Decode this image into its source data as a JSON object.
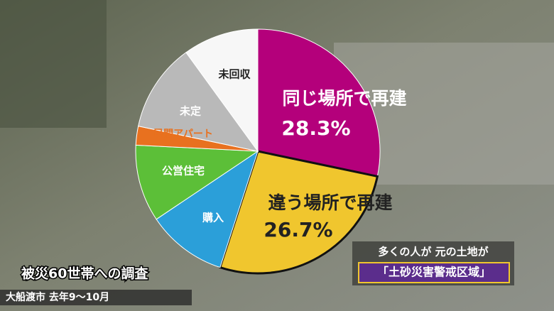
{
  "chart_data": {
    "type": "pie",
    "title": "被災60世帯への調査",
    "subtitle": "大船渡市 去年9～10月",
    "annotations": [
      "多くの人が 元の土地が",
      "「土砂災害警戒区域」"
    ],
    "categories": [
      "同じ場所で再建",
      "違う場所で再建",
      "購入",
      "公営住宅",
      "民間アパート",
      "未定",
      "未回収"
    ],
    "values": [
      28.3,
      26.7,
      10.6,
      10.2,
      2.5,
      11.7,
      10.0
    ],
    "value_labels": [
      "28.3%",
      "26.7%",
      null,
      null,
      null,
      null,
      null
    ],
    "colors": [
      "#b4007b",
      "#f0c62e",
      "#2b9fd9",
      "#5cbf38",
      "#e8711f",
      "#b9b9b9",
      "#f7f7f7"
    ]
  }
}
